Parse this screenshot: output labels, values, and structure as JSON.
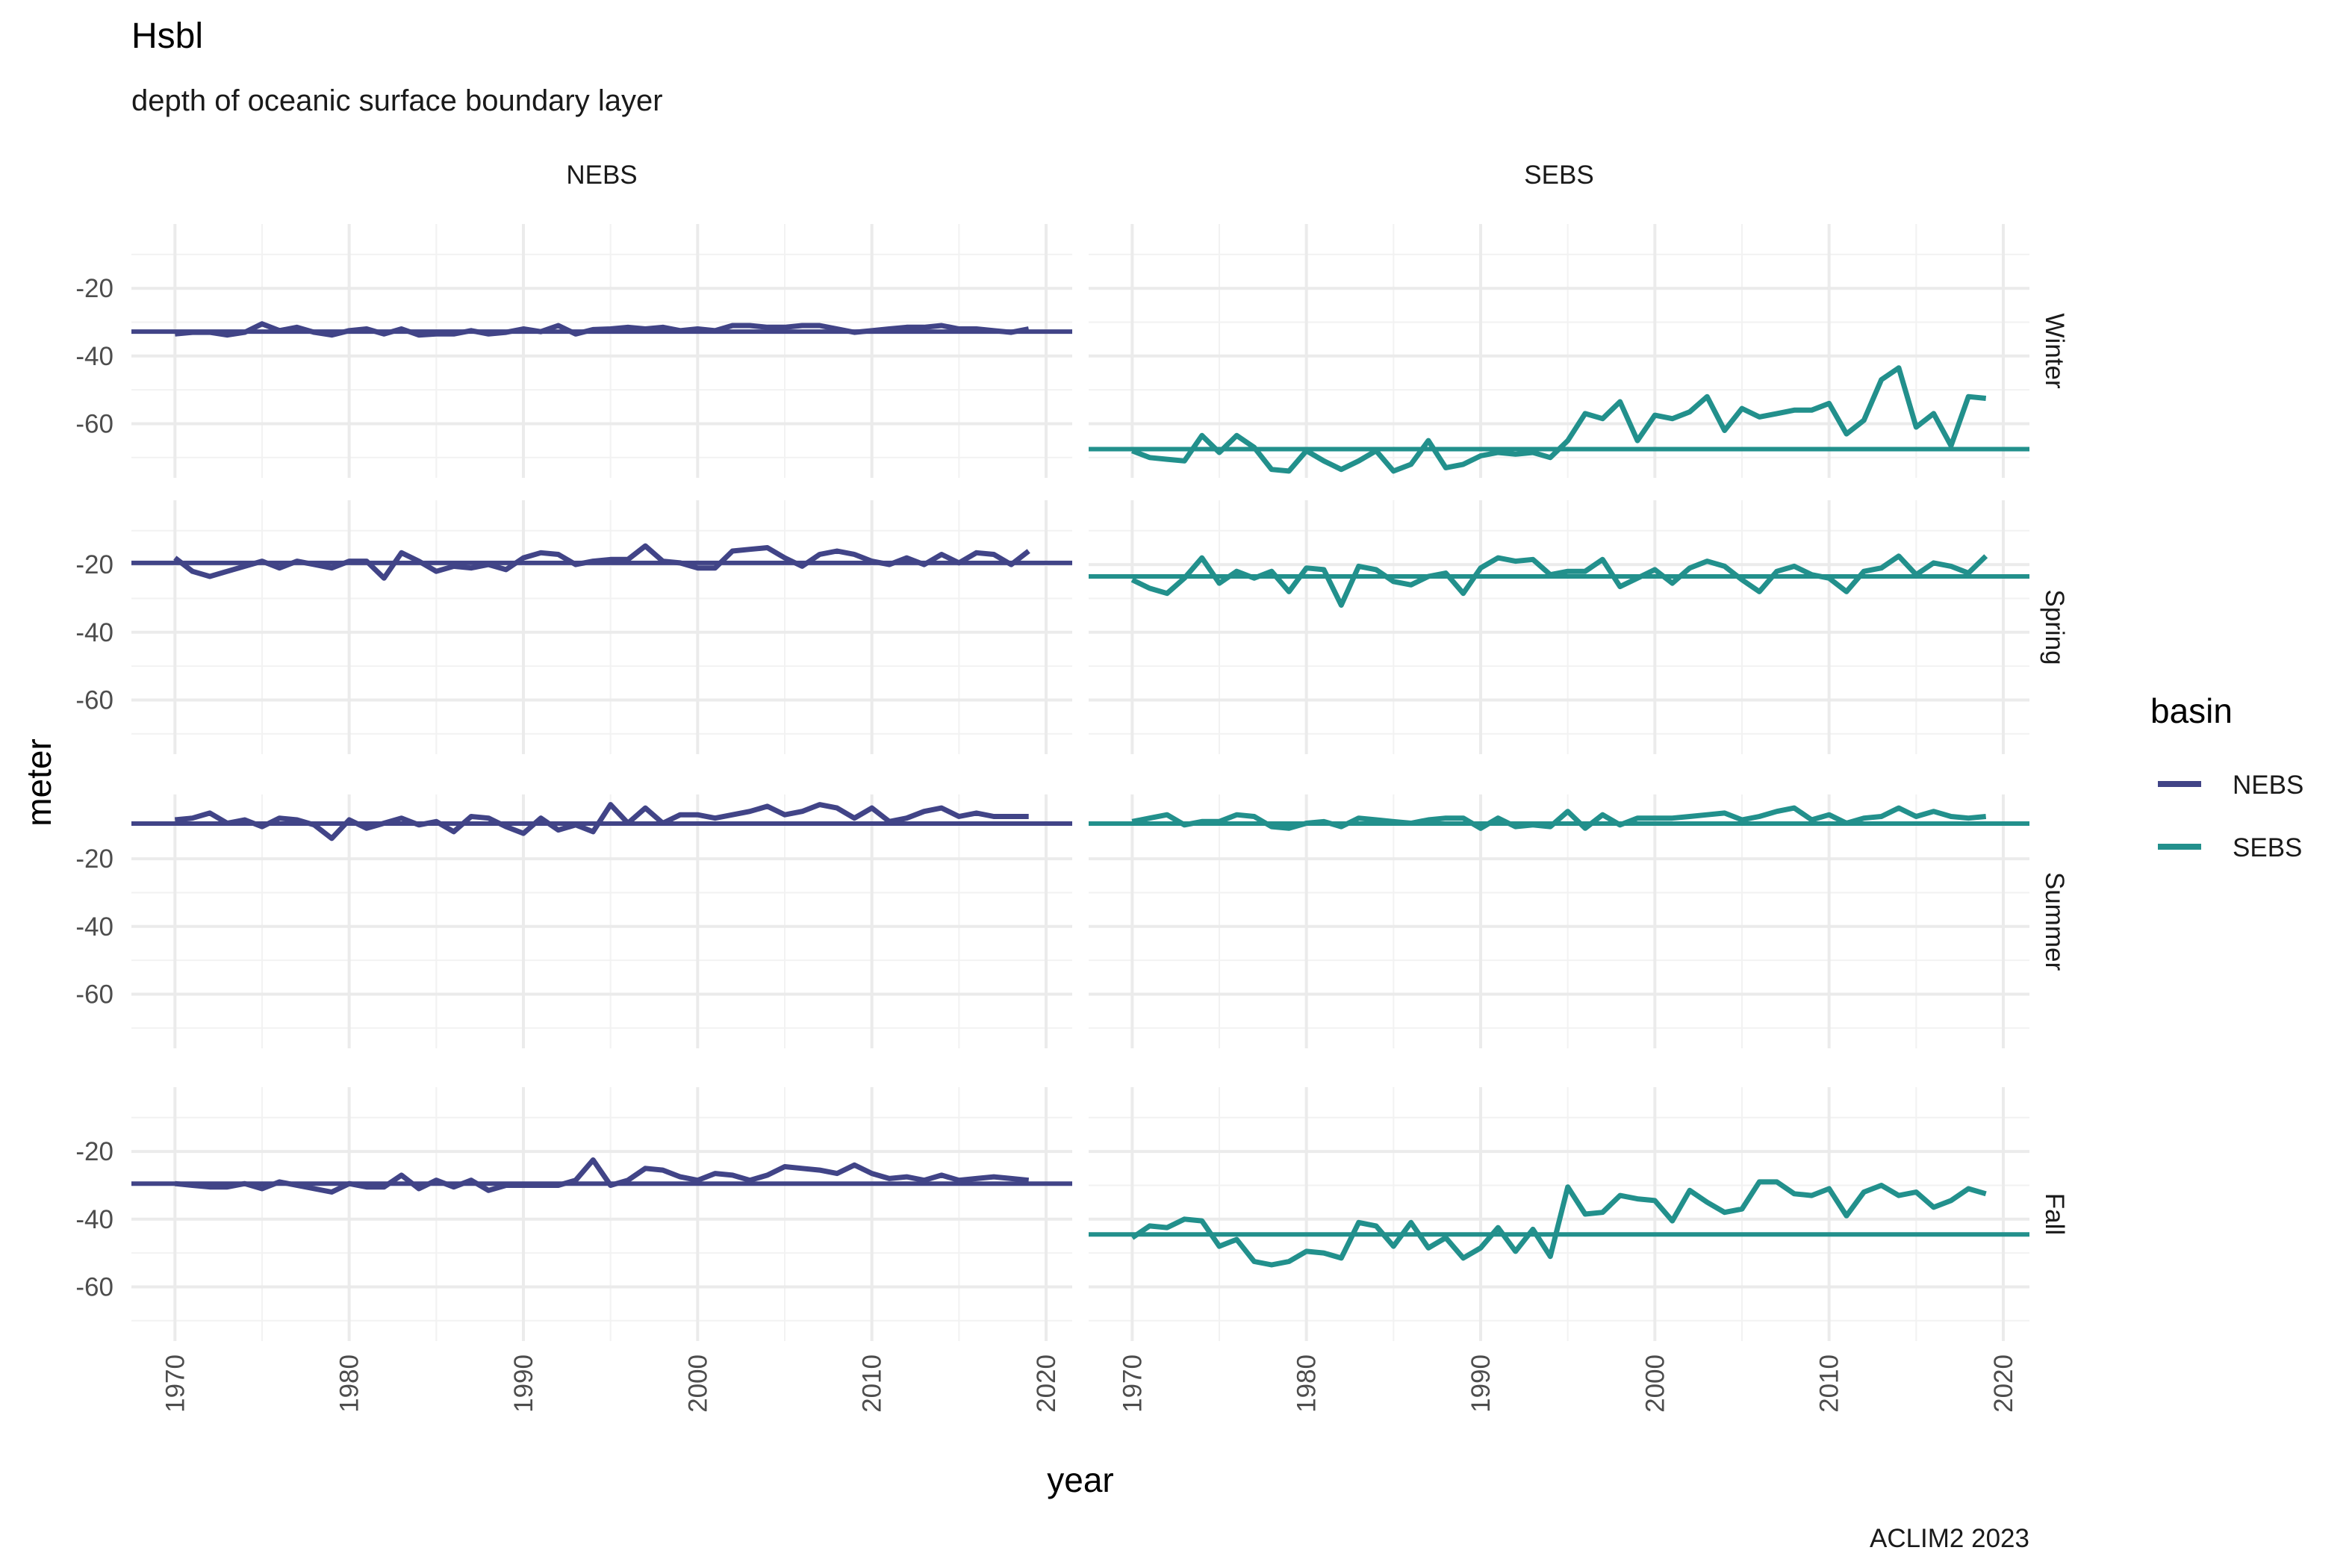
{
  "title": "Hsbl",
  "subtitle": "depth of oceanic surface boundary layer",
  "caption": "ACLIM2 2023",
  "colors": {
    "NEBS": "#414487",
    "SEBS": "#22908C"
  },
  "chart_data": {
    "type": "line",
    "xlabel": "year",
    "ylabel": "meter",
    "xlim": [
      1967.5,
      2021.5
    ],
    "ylim": [
      -76,
      -1
    ],
    "x_ticks": [
      1970,
      1980,
      1990,
      2000,
      2010,
      2020
    ],
    "x_tick_labels": [
      "1970",
      "1980",
      "1990",
      "2000",
      "2010",
      "2020"
    ],
    "y_ticks": [
      -20,
      -40,
      -60
    ],
    "y_tick_labels": [
      "-20",
      "-40",
      "-60"
    ],
    "grid": true,
    "facet_columns": [
      "NEBS",
      "SEBS"
    ],
    "facet_rows": [
      "Winter",
      "Spring",
      "Summer",
      "Fall"
    ],
    "legend": {
      "title": "basin",
      "position": "right",
      "entries": [
        "NEBS",
        "SEBS"
      ]
    },
    "x": [
      1970,
      1971,
      1972,
      1973,
      1974,
      1975,
      1976,
      1977,
      1978,
      1979,
      1980,
      1981,
      1982,
      1983,
      1984,
      1985,
      1986,
      1987,
      1988,
      1989,
      1990,
      1991,
      1992,
      1993,
      1994,
      1995,
      1996,
      1997,
      1998,
      1999,
      2000,
      2001,
      2002,
      2003,
      2004,
      2005,
      2006,
      2007,
      2008,
      2009,
      2010,
      2011,
      2012,
      2013,
      2014,
      2015,
      2016,
      2017,
      2018,
      2019
    ],
    "panels": [
      {
        "season": "Winter",
        "basin": "NEBS",
        "mean": -32.8,
        "values": [
          -33.5,
          -33,
          -33,
          -33.8,
          -33,
          -30.5,
          -32.5,
          -31.5,
          -33,
          -33.8,
          -32.5,
          -32,
          -33.5,
          -32,
          -33.8,
          -33.5,
          -33.5,
          -32.5,
          -33.5,
          -33,
          -32,
          -32.8,
          -31,
          -33.5,
          -32.2,
          -32,
          -31.5,
          -32,
          -31.5,
          -32.5,
          -32,
          -32.5,
          -31,
          -31,
          -31.5,
          -31.5,
          -31,
          -31,
          -32,
          -33,
          -32.5,
          -32,
          -31.5,
          -31.5,
          -31,
          -32,
          -32,
          -32.5,
          -33,
          -32
        ]
      },
      {
        "season": "Winter",
        "basin": "SEBS",
        "mean": -67.5,
        "values": [
          -68,
          -70,
          -70.5,
          -71,
          -63.5,
          -68.5,
          -63.5,
          -67,
          -73.5,
          -74,
          -68,
          -71,
          -73.5,
          -71,
          -68,
          -74,
          -72,
          -65,
          -73,
          -72,
          -69.5,
          -68.5,
          -69,
          -68.5,
          -70,
          -65,
          -57,
          -58.5,
          -53.5,
          -65,
          -57.5,
          -58.5,
          -56.5,
          -52,
          -62,
          -55.5,
          -58,
          -57,
          -56,
          -56,
          -54,
          -63,
          -59,
          -47,
          -43.5,
          -61,
          -57,
          -66.5,
          -52,
          -52.5
        ]
      },
      {
        "season": "Spring",
        "basin": "NEBS",
        "mean": -19.5,
        "values": [
          -18,
          -22,
          -23.5,
          -22,
          -20.5,
          -19,
          -21,
          -19,
          -20,
          -21,
          -19,
          -19,
          -24,
          -16.5,
          -19,
          -22,
          -20.5,
          -21,
          -20,
          -21.5,
          -18,
          -16.5,
          -17,
          -20,
          -19,
          -18.5,
          -18.5,
          -14.5,
          -19,
          -19.5,
          -21,
          -21,
          -16,
          -15.5,
          -15,
          -18,
          -20.5,
          -17,
          -16,
          -17,
          -19,
          -20,
          -18,
          -20,
          -17,
          -19.5,
          -16.5,
          -17,
          -20,
          -16
        ]
      },
      {
        "season": "Spring",
        "basin": "SEBS",
        "mean": -23.5,
        "values": [
          -24.5,
          -27,
          -28.5,
          -24,
          -18,
          -25.5,
          -22,
          -24,
          -22,
          -28,
          -21,
          -21.5,
          -32,
          -20.5,
          -21.5,
          -25,
          -26,
          -23.5,
          -22.5,
          -28.5,
          -21,
          -18,
          -19,
          -18.5,
          -23,
          -22,
          -22,
          -18.5,
          -26.5,
          -24,
          -21.5,
          -25.5,
          -21,
          -19,
          -20.5,
          -24.5,
          -28,
          -22,
          -20.5,
          -23,
          -24,
          -28,
          -22,
          -21,
          -17.5,
          -23,
          -19.5,
          -20.5,
          -22.5,
          -17.5
        ]
      },
      {
        "season": "Summer",
        "basin": "NEBS",
        "mean": -9.6,
        "values": [
          -8.5,
          -8,
          -6.5,
          -9.5,
          -8.5,
          -10.5,
          -8,
          -8.5,
          -10,
          -14,
          -8.5,
          -11,
          -9.5,
          -8,
          -10,
          -9,
          -12,
          -7.5,
          -8,
          -10.5,
          -12.5,
          -8,
          -11.5,
          -10,
          -12,
          -4,
          -9.5,
          -5,
          -9.5,
          -7,
          -7,
          -8,
          -7,
          -6,
          -4.5,
          -7,
          -6,
          -4,
          -5,
          -8,
          -5,
          -9,
          -8,
          -6,
          -5,
          -7.5,
          -6.5,
          -7.5,
          -7.5,
          -7.5
        ]
      },
      {
        "season": "Summer",
        "basin": "SEBS",
        "mean": -9.6,
        "values": [
          -9,
          -8,
          -7,
          -10,
          -9,
          -9,
          -7,
          -7.5,
          -10.5,
          -11,
          -9.5,
          -9,
          -10.5,
          -8,
          -8.5,
          -9,
          -9.5,
          -8.5,
          -8,
          -8,
          -11,
          -8,
          -10.5,
          -10,
          -10.5,
          -6,
          -11,
          -7,
          -10,
          -8,
          -8,
          -8,
          -7.5,
          -7,
          -6.5,
          -8.5,
          -7.5,
          -6,
          -5,
          -8.5,
          -7,
          -9.5,
          -8,
          -7.5,
          -5,
          -7.5,
          -6,
          -7.5,
          -8,
          -7.5
        ]
      },
      {
        "season": "Fall",
        "basin": "NEBS",
        "mean": -29.5,
        "values": [
          -29.5,
          -30,
          -30.5,
          -30.5,
          -29.5,
          -31,
          -29,
          -30,
          -31,
          -32,
          -29.5,
          -30.5,
          -30.5,
          -27,
          -31,
          -28.5,
          -30.5,
          -28.5,
          -31.5,
          -30,
          -30,
          -30,
          -30,
          -28.5,
          -22.5,
          -30,
          -28.5,
          -25,
          -25.5,
          -27.5,
          -28.5,
          -26.5,
          -27,
          -28.5,
          -27,
          -24.5,
          -25,
          -25.5,
          -26.5,
          -24,
          -26.5,
          -28,
          -27.5,
          -28.5,
          -27,
          -28.5,
          -28,
          -27.5,
          -28,
          -28.5
        ]
      },
      {
        "season": "Fall",
        "basin": "SEBS",
        "mean": -44.5,
        "values": [
          -45.5,
          -42,
          -42.5,
          -40,
          -40.5,
          -48,
          -46,
          -52.5,
          -53.5,
          -52.5,
          -49.5,
          -50,
          -51.5,
          -41,
          -42,
          -48,
          -41,
          -48.5,
          -45.5,
          -51.5,
          -48.5,
          -42.5,
          -49.5,
          -43,
          -51,
          -30.5,
          -38.5,
          -38,
          -33,
          -34,
          -34.5,
          -40.5,
          -31.5,
          -35,
          -38,
          -37,
          -29,
          -29,
          -32.5,
          -33,
          -31,
          -39,
          -32,
          -30,
          -33,
          -32,
          -36.5,
          -34.5,
          -31,
          -32.5
        ]
      }
    ]
  }
}
